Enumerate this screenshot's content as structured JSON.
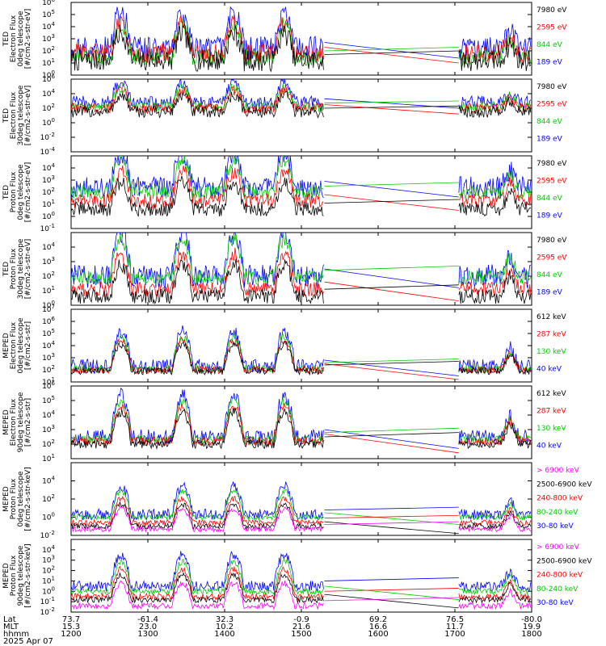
{
  "footer": {
    "row_labels": [
      "Lat",
      "MLT",
      "hhmm"
    ],
    "date": "2025 Apr 07",
    "ticks": [
      {
        "lat": "73.7",
        "mlt": "15.3",
        "hhmm": "1200"
      },
      {
        "lat": "-61.4",
        "mlt": "23.0",
        "hhmm": "1300"
      },
      {
        "lat": "32.3",
        "mlt": "10.2",
        "hhmm": "1400"
      },
      {
        "lat": "-0.9",
        "mlt": "21.6",
        "hhmm": "1500"
      },
      {
        "lat": "69.2",
        "mlt": "16.6",
        "hhmm": "1600"
      },
      {
        "lat": "76.5",
        "mlt": "11.7",
        "hhmm": "1700"
      },
      {
        "lat": "-80.0",
        "mlt": "19.9",
        "hhmm": "1800"
      }
    ]
  },
  "chart_data": [
    {
      "type": "line",
      "ylabel": [
        "TED",
        "Electron Flux",
        "0deg telescope",
        "[#/cm2-s-str-eV]"
      ],
      "yscale": "log",
      "ylim_exp": [
        0,
        6
      ],
      "tick_exps": [
        0,
        1,
        2,
        3,
        4,
        5,
        6
      ],
      "xlim": [
        1200,
        1800
      ],
      "series": [
        {
          "name": "7980 eV",
          "color": "#000000",
          "level": 1.2,
          "spread": 0.9
        },
        {
          "name": "2595 eV",
          "color": "#ff0000",
          "level": 1.8,
          "spread": 0.8
        },
        {
          "name": "844 eV",
          "color": "#00cc00",
          "level": 1.5,
          "spread": 0.7
        },
        {
          "name": "189 eV",
          "color": "#0000ff",
          "level": 2.2,
          "spread": 1.0
        }
      ]
    },
    {
      "type": "line",
      "ylabel": [
        "TED",
        "Electron Flux",
        "30deg telescope",
        "[#/cm2-s-str-eV]"
      ],
      "yscale": "log",
      "ylim_exp": [
        -4,
        6
      ],
      "tick_exps": [
        -4,
        -2,
        0,
        2,
        4,
        6
      ],
      "xlim": [
        1200,
        1800
      ],
      "series": [
        {
          "name": "7980 eV",
          "color": "#000000",
          "level": 1.5,
          "spread": 0.8
        },
        {
          "name": "2595 eV",
          "color": "#ff0000",
          "level": 2.0,
          "spread": 0.7
        },
        {
          "name": "844 eV",
          "color": "#00cc00",
          "level": 2.2,
          "spread": 0.7
        },
        {
          "name": "189 eV",
          "color": "#0000ff",
          "level": 2.8,
          "spread": 0.9
        }
      ]
    },
    {
      "type": "line",
      "ylabel": [
        "TED",
        "Proton Flux",
        "0deg telescope",
        "[#/cm2-s-str-eV]"
      ],
      "yscale": "log",
      "ylim_exp": [
        -1,
        5
      ],
      "tick_exps": [
        -1,
        0,
        1,
        2,
        3,
        4
      ],
      "xlim": [
        1200,
        1800
      ],
      "series": [
        {
          "name": "7980 eV",
          "color": "#000000",
          "level": 0.6,
          "spread": 0.6
        },
        {
          "name": "2595 eV",
          "color": "#ff0000",
          "level": 1.3,
          "spread": 0.6
        },
        {
          "name": "844 eV",
          "color": "#00cc00",
          "level": 2.0,
          "spread": 0.6
        },
        {
          "name": "189 eV",
          "color": "#0000ff",
          "level": 2.4,
          "spread": 0.9
        }
      ]
    },
    {
      "type": "line",
      "ylabel": [
        "TED",
        "Proton Flux",
        "30deg telescope",
        "[#/cm2-s-str-eV]"
      ],
      "yscale": "log",
      "ylim_exp": [
        0,
        5
      ],
      "tick_exps": [
        0,
        1,
        2,
        3,
        4
      ],
      "xlim": [
        1200,
        1800
      ],
      "series": [
        {
          "name": "7980 eV",
          "color": "#000000",
          "level": 0.6,
          "spread": 0.5
        },
        {
          "name": "2595 eV",
          "color": "#ff0000",
          "level": 1.1,
          "spread": 0.5
        },
        {
          "name": "844 eV",
          "color": "#00cc00",
          "level": 1.9,
          "spread": 0.5
        },
        {
          "name": "189 eV",
          "color": "#0000ff",
          "level": 2.0,
          "spread": 0.8
        }
      ]
    },
    {
      "type": "line",
      "ylabel": [
        "MEPED",
        "Electron Flux",
        "0deg telescope",
        "[#/cm2-s-str]"
      ],
      "yscale": "log",
      "ylim_exp": [
        1,
        7
      ],
      "tick_exps": [
        1,
        2,
        3,
        4,
        5,
        6,
        7
      ],
      "xlim": [
        1200,
        1800
      ],
      "series": [
        {
          "name": "612 keV",
          "color": "#000000",
          "level": 1.9,
          "spread": 0.3
        },
        {
          "name": "287 keV",
          "color": "#ff0000",
          "level": 2.0,
          "spread": 0.3
        },
        {
          "name": "130 keV",
          "color": "#00cc00",
          "level": 2.1,
          "spread": 0.3
        },
        {
          "name": "40 keV",
          "color": "#0000ff",
          "level": 2.3,
          "spread": 0.6
        }
      ]
    },
    {
      "type": "line",
      "ylabel": [
        "MEPED",
        "Electron Flux",
        "90deg telescope",
        "[#/cm2-s-str]"
      ],
      "yscale": "log",
      "ylim_exp": [
        1,
        6
      ],
      "tick_exps": [
        1,
        2,
        3,
        4,
        5,
        6
      ],
      "xlim": [
        1200,
        1800
      ],
      "series": [
        {
          "name": "612 keV",
          "color": "#000000",
          "level": 2.0,
          "spread": 0.3
        },
        {
          "name": "287 keV",
          "color": "#ff0000",
          "level": 2.2,
          "spread": 0.3
        },
        {
          "name": "130 keV",
          "color": "#00cc00",
          "level": 2.3,
          "spread": 0.3
        },
        {
          "name": "40 keV",
          "color": "#0000ff",
          "level": 2.5,
          "spread": 0.5
        }
      ]
    },
    {
      "type": "line",
      "ylabel": [
        "MEPED",
        "Proton Flux",
        "0deg telescope",
        "[#/cm2-s-str-keV]"
      ],
      "yscale": "log",
      "ylim_exp": [
        -2,
        6
      ],
      "tick_exps": [
        -2,
        0,
        2,
        4
      ],
      "xlim": [
        1200,
        1800
      ],
      "series": [
        {
          "name": "> 6900 keV",
          "color": "#ff00ff",
          "level": -1.3,
          "spread": 0.3
        },
        {
          "name": "2500-6900 keV",
          "color": "#000000",
          "level": -1.0,
          "spread": 0.3
        },
        {
          "name": "240-800 keV",
          "color": "#ff0000",
          "level": -0.6,
          "spread": 0.3
        },
        {
          "name": "80-240 keV",
          "color": "#00cc00",
          "level": 0.0,
          "spread": 0.3
        },
        {
          "name": "30-80 keV",
          "color": "#0000ff",
          "level": 0.3,
          "spread": 0.6
        }
      ]
    },
    {
      "type": "line",
      "ylabel": [
        "MEPED",
        "Proton Flux",
        "90deg telescope",
        "[#/cm2-s-str-keV]"
      ],
      "yscale": "log",
      "ylim_exp": [
        -2,
        5
      ],
      "tick_exps": [
        -2,
        -1,
        0,
        1,
        2,
        3,
        4
      ],
      "xlim": [
        1200,
        1800
      ],
      "series": [
        {
          "name": "> 6900 keV",
          "color": "#ff00ff",
          "level": -1.4,
          "spread": 0.3
        },
        {
          "name": "2500-6900 keV",
          "color": "#000000",
          "level": -0.8,
          "spread": 0.3
        },
        {
          "name": "240-800 keV",
          "color": "#ff0000",
          "level": -0.5,
          "spread": 0.3
        },
        {
          "name": "80-240 keV",
          "color": "#00cc00",
          "level": 0.0,
          "spread": 0.3
        },
        {
          "name": "30-80 keV",
          "color": "#0000ff",
          "level": 0.5,
          "spread": 0.5
        }
      ]
    }
  ]
}
